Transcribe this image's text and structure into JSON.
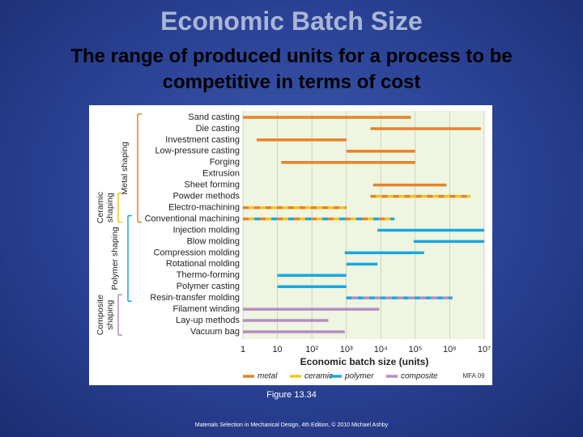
{
  "slide": {
    "title": "Economic Batch Size",
    "subtitle": "The range of produced units for a process to be competitive in terms of cost",
    "caption": "Figure 13.34",
    "footer": "Materials Selection in Mechanical Design, 4th Edition, © 2010 Michael Ashby"
  },
  "chart_data": {
    "type": "range-bar",
    "xlabel": "Economic batch size (units)",
    "credit": "MFA 09",
    "xscale": "log",
    "xlim": [
      1,
      10000000
    ],
    "xticks": [
      1,
      10,
      {
        "value": 100,
        "label": "10²"
      },
      {
        "value": 1000,
        "label": "10³"
      },
      {
        "value": 10000,
        "label": "10⁴"
      },
      {
        "value": 100000,
        "label": "10⁵"
      },
      {
        "value": 1000000,
        "label": "10⁶"
      },
      {
        "value": 10000000,
        "label": "10⁷"
      }
    ],
    "grid": true,
    "legend": [
      {
        "name": "metal",
        "color": "#e8822a"
      },
      {
        "name": "ceramic",
        "color": "#f5c518"
      },
      {
        "name": "polymer",
        "color": "#1aa7e0"
      },
      {
        "name": "composite",
        "color": "#b48ec2"
      }
    ],
    "groups": [
      {
        "label": "Metal shaping",
        "first": 0,
        "last": 9,
        "class": 0
      },
      {
        "label": "Ceramic shaping",
        "first": 7,
        "last": 9,
        "class": 1
      },
      {
        "label": "Polymer shaping",
        "first": 9,
        "last": 16,
        "class": 2
      },
      {
        "label": "Composite shaping",
        "first": 16,
        "last": 19,
        "class": 3
      }
    ],
    "processes": [
      {
        "name": "Sand casting",
        "range": [
          1,
          75000
        ],
        "classes": [
          0
        ]
      },
      {
        "name": "Die casting",
        "range": [
          5000,
          8000000
        ],
        "classes": [
          0
        ]
      },
      {
        "name": "Investment casting",
        "range": [
          2.5,
          1000
        ],
        "classes": [
          0
        ]
      },
      {
        "name": "Low-pressure casting",
        "range": [
          1000,
          100000
        ],
        "classes": [
          0
        ]
      },
      {
        "name": "Forging",
        "range": [
          13,
          100000
        ],
        "classes": [
          0
        ]
      },
      {
        "name": "Extrusion",
        "range": null,
        "classes": [
          0
        ]
      },
      {
        "name": "Sheet forming",
        "range": [
          6000,
          800000
        ],
        "classes": [
          0
        ]
      },
      {
        "name": "Powder methods",
        "range": [
          5000,
          4000000
        ],
        "classes": [
          0,
          1
        ]
      },
      {
        "name": "Electro-machining",
        "range": [
          1,
          1000
        ],
        "classes": [
          0,
          1
        ]
      },
      {
        "name": "Conventional machining",
        "range": [
          1,
          25000
        ],
        "classes": [
          0,
          1,
          2
        ]
      },
      {
        "name": "Injection molding",
        "range": [
          8000,
          10000000
        ],
        "classes": [
          2
        ]
      },
      {
        "name": "Blow molding",
        "range": [
          90000,
          10000000
        ],
        "classes": [
          2
        ]
      },
      {
        "name": "Compression molding",
        "range": [
          900,
          180000
        ],
        "classes": [
          2
        ]
      },
      {
        "name": "Rotational molding",
        "range": [
          1000,
          8000
        ],
        "classes": [
          2
        ]
      },
      {
        "name": "Thermo-forming",
        "range": [
          10,
          1000
        ],
        "classes": [
          2
        ]
      },
      {
        "name": "Polymer casting",
        "range": [
          10,
          1000
        ],
        "classes": [
          2
        ]
      },
      {
        "name": "Resin-transfer molding",
        "range": [
          1000,
          1200000
        ],
        "classes": [
          2,
          3
        ]
      },
      {
        "name": "Filament winding",
        "range": [
          1,
          9000
        ],
        "classes": [
          3
        ]
      },
      {
        "name": "Lay-up methods",
        "range": [
          1,
          300
        ],
        "classes": [
          3
        ]
      },
      {
        "name": "Vacuum bag",
        "range": [
          1,
          900
        ],
        "classes": [
          3
        ]
      }
    ]
  }
}
